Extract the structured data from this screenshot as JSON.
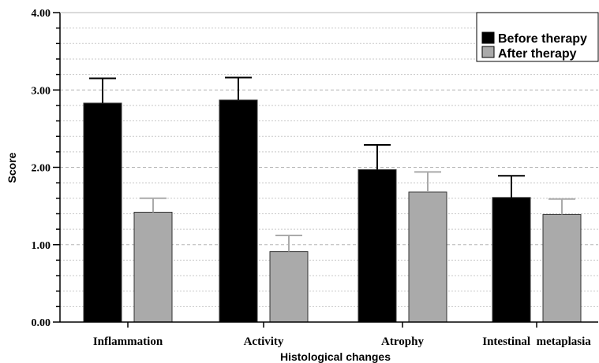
{
  "chart_data": {
    "type": "bar",
    "categories": [
      "Inflammation",
      "Activity",
      "Atrophy",
      "Intestinal  metaplasia"
    ],
    "series": [
      {
        "name": "Before therapy",
        "color": "#000000",
        "values": [
          2.83,
          2.87,
          1.97,
          1.61
        ],
        "error_upper": [
          3.15,
          3.16,
          2.29,
          1.89
        ]
      },
      {
        "name": "After therapy",
        "color": "#aaaaaa",
        "values": [
          1.42,
          0.91,
          1.68,
          1.39
        ],
        "error_upper": [
          1.6,
          1.12,
          1.94,
          1.59
        ]
      }
    ],
    "xlabel": "Histological changes",
    "ylabel": "Score",
    "ylim": [
      0,
      4
    ],
    "yticks": [
      "0.00",
      "1.00",
      "2.00",
      "3.00",
      "4.00"
    ],
    "grid": "horizontal dashed",
    "legend_position": "top-right"
  }
}
